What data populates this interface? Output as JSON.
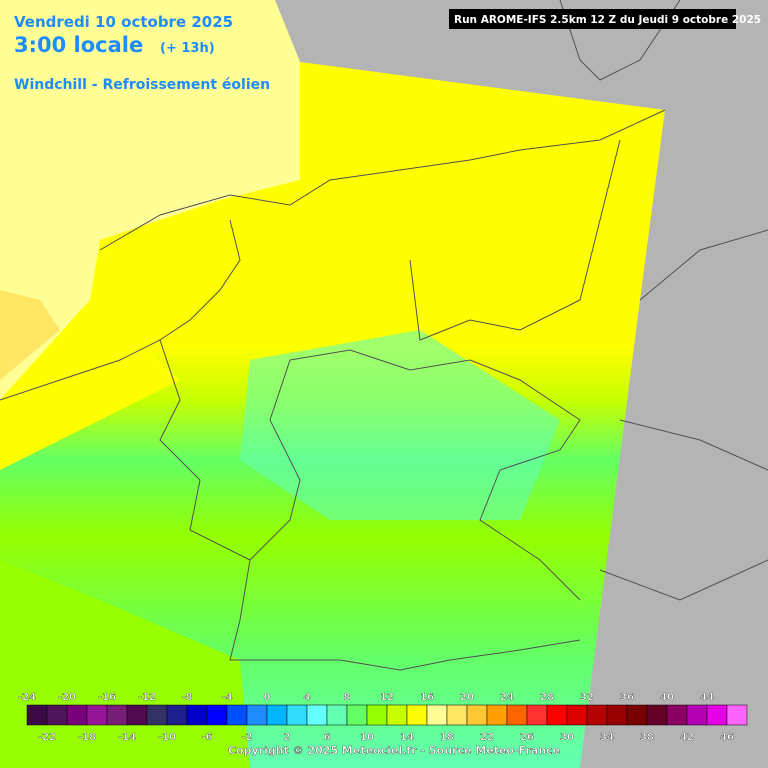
{
  "header": {
    "date": "Vendredi 10 octobre 2025",
    "time": "3:00 locale",
    "offset": "(+ 13h)",
    "parameter": "Windchill - Refroissement éolien",
    "run": "Run AROME-IFS 2.5km 12 Z du Jeudi 9 octobre 2025"
  },
  "legend": {
    "stops": [
      -24,
      -22,
      -20,
      -18,
      -16,
      -14,
      -12,
      -10,
      -8,
      -6,
      -4,
      -2,
      0,
      2,
      4,
      6,
      8,
      10,
      12,
      14,
      16,
      18,
      20,
      22,
      24,
      26,
      28,
      30,
      32,
      34,
      36,
      38,
      40,
      42,
      44,
      46
    ],
    "colors": [
      "#3c0a46",
      "#50145a",
      "#780078",
      "#961496",
      "#781e78",
      "#500a50",
      "#323264",
      "#1e1e8c",
      "#0000c8",
      "#0000ff",
      "#0050ff",
      "#1e8cff",
      "#00b4ff",
      "#32dcff",
      "#64ffff",
      "#64ffb4",
      "#64ff64",
      "#96ff00",
      "#c8ff00",
      "#ffff00",
      "#ffff96",
      "#ffe664",
      "#ffc832",
      "#ffa000",
      "#ff6400",
      "#ff3232",
      "#ff0000",
      "#dc0000",
      "#b40000",
      "#960000",
      "#780000",
      "#640028",
      "#8c0064",
      "#b400b4",
      "#e600e6",
      "#ff64ff"
    ]
  },
  "footer": {
    "copyright": "Copyright © 2025 Meteociel.fr - Source Meteo-France"
  }
}
